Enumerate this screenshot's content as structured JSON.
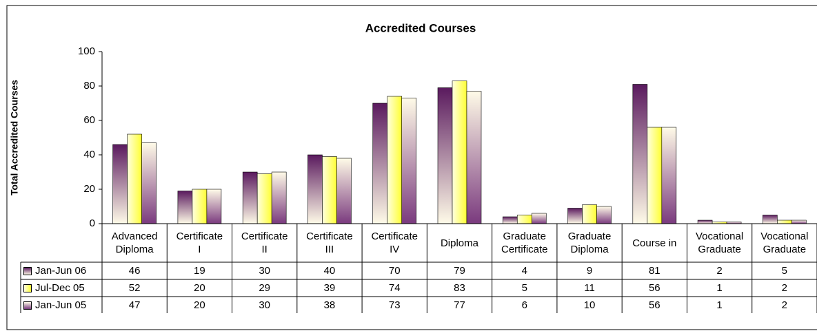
{
  "chart_data": {
    "type": "bar",
    "title": "Accredited Courses",
    "y_label": "Total Accredited Courses",
    "categories": [
      "Advanced\nDiploma",
      "Certificate\nI",
      "Certificate\nII",
      "Certificate\nIII",
      "Certificate\nIV",
      "Diploma",
      "Graduate\nCertificate",
      "Graduate\nDiploma",
      "Course in",
      "Vocational\nGraduate",
      "Vocational\nGraduate"
    ],
    "series": [
      {
        "name": "Jan-Jun 06",
        "color": "#5a1a5e",
        "values": [
          46,
          19,
          30,
          40,
          70,
          79,
          4,
          9,
          81,
          2,
          5
        ]
      },
      {
        "name": "Jul-Dec 05",
        "color": "#ffff33",
        "values": [
          52,
          20,
          29,
          39,
          74,
          83,
          5,
          11,
          56,
          1,
          2
        ]
      },
      {
        "name": "Jan-Jun 05",
        "color": "#7a3a7e",
        "values": [
          47,
          20,
          30,
          38,
          73,
          77,
          6,
          10,
          56,
          1,
          2
        ]
      }
    ],
    "ylim": [
      0,
      100
    ],
    "yticks": [
      0,
      20,
      40,
      60,
      80,
      100
    ]
  }
}
